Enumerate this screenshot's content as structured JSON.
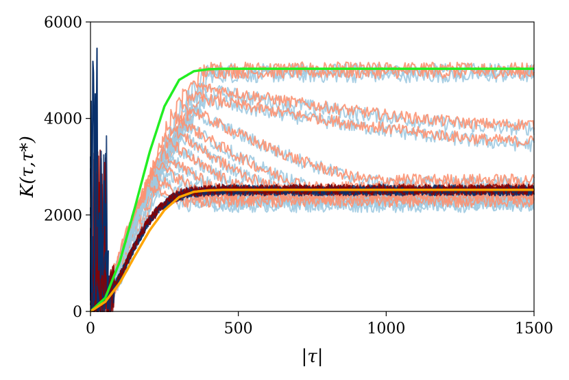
{
  "chart_data": {
    "type": "line",
    "title": "",
    "xlabel": "|τ|",
    "ylabel": "K(τ,τ*)",
    "xlim": [
      0,
      1500
    ],
    "ylim": [
      0,
      6000
    ],
    "x_ticks": [
      0,
      500,
      1000,
      1500
    ],
    "y_ticks": [
      0,
      2000,
      4000,
      6000
    ],
    "x_tick_labels": [
      "0",
      "500",
      "1000",
      "1500"
    ],
    "y_tick_labels": [
      "0",
      "2000",
      "4000",
      "6000"
    ],
    "grid": false,
    "legend": "none",
    "colors": {
      "light_blue": "#9ecae1",
      "salmon": "#fc9272",
      "dark_blue": "#08306b",
      "dark_red": "#8b0000",
      "green": "#22ee22",
      "orange": "#ffa500"
    },
    "series": [
      {
        "x": [
          0,
          50,
          100,
          150,
          200,
          250,
          300,
          350,
          400,
          450,
          500,
          600,
          800,
          1000,
          1200,
          1500
        ],
        "y": [
          0,
          280,
          1050,
          2150,
          3300,
          4250,
          4800,
          4980,
          5020,
          5030,
          5030,
          5030,
          5030,
          5030,
          5030,
          5030
        ]
      },
      {
        "x": [
          0,
          50,
          100,
          150,
          200,
          250,
          300,
          350,
          400,
          450,
          500,
          600,
          800,
          1000,
          1200,
          1500
        ],
        "y": [
          0,
          200,
          600,
          1150,
          1680,
          2100,
          2370,
          2480,
          2510,
          2520,
          2520,
          2520,
          2520,
          2520,
          2520,
          2520
        ]
      }
    ]
  }
}
